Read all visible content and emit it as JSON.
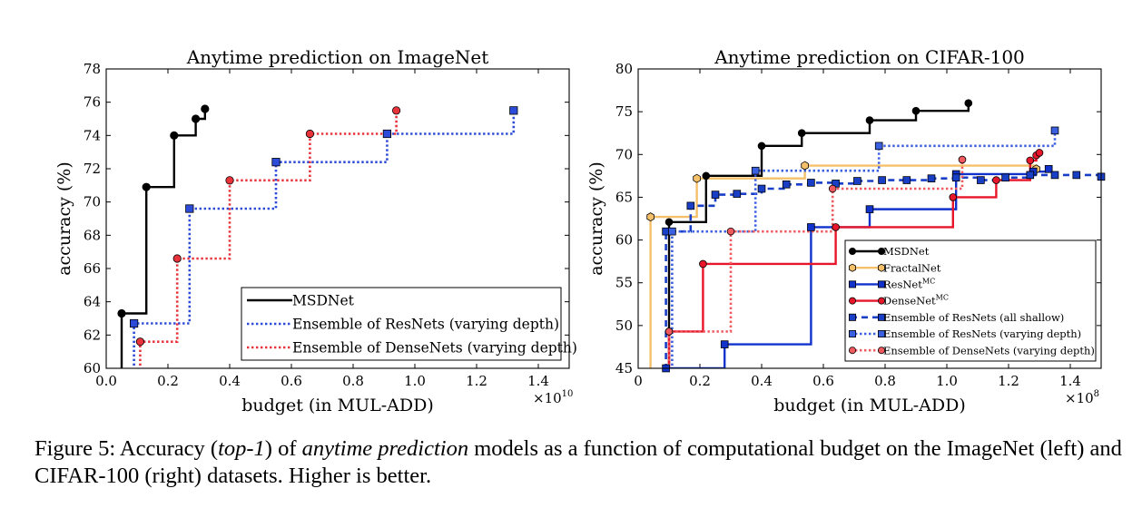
{
  "caption": {
    "prefix": "Figure 5: Accuracy (",
    "em1": "top-1",
    "mid": ") of ",
    "em2": "anytime prediction",
    "suffix": " models as a function of computational budget on the ImageNet (left) and CIFAR-100 (right) datasets. Higher is better."
  },
  "chart_data": [
    {
      "type": "line",
      "title": "Anytime prediction on ImageNet",
      "xlabel": "budget (in MUL-ADD)",
      "ylabel": "accuracy (%)",
      "x_multiplier": "×10",
      "x_multiplier_exp": "10",
      "xlim": [
        0,
        1.5
      ],
      "ylim": [
        60,
        78
      ],
      "xticks": [
        "0.0",
        "0.2",
        "0.4",
        "0.6",
        "0.8",
        "1.0",
        "1.2",
        "1.4"
      ],
      "yticks": [
        "60",
        "62",
        "64",
        "66",
        "68",
        "70",
        "72",
        "74",
        "76",
        "78"
      ],
      "legend_position": "lower-right",
      "series": [
        {
          "name": "MSDNet",
          "style": "solid",
          "color": "#000000",
          "marker": "circle",
          "x": [
            0.05,
            0.13,
            0.22,
            0.29,
            0.32
          ],
          "y": [
            63.3,
            70.9,
            74.0,
            75.0,
            75.6
          ]
        },
        {
          "name": "Ensemble of ResNets (varying depth)",
          "style": "dotted",
          "color": "#2c4bd8",
          "marker": "square",
          "x": [
            0.09,
            0.27,
            0.55,
            0.91,
            1.32
          ],
          "y": [
            62.7,
            69.6,
            72.4,
            74.1,
            75.5
          ]
        },
        {
          "name": "Ensemble of DenseNets (varying depth)",
          "style": "dotted",
          "color": "#e8333b",
          "marker": "circle",
          "x": [
            0.11,
            0.23,
            0.4,
            0.66,
            0.94
          ],
          "y": [
            61.6,
            66.6,
            71.3,
            74.1,
            75.5
          ]
        }
      ]
    },
    {
      "type": "line",
      "title": "Anytime prediction on CIFAR-100",
      "xlabel": "budget (in MUL-ADD)",
      "ylabel": "accuracy (%)",
      "x_multiplier": "×10",
      "x_multiplier_exp": "8",
      "xlim": [
        0,
        1.5
      ],
      "ylim": [
        45,
        80
      ],
      "xticks": [
        "0",
        "0.2",
        "0.4",
        "0.6",
        "0.8",
        "1.0",
        "1.2",
        "1.4"
      ],
      "yticks": [
        "45",
        "50",
        "55",
        "60",
        "65",
        "70",
        "75",
        "80"
      ],
      "legend_position": "lower-right",
      "series": [
        {
          "name": "MSDNet",
          "style": "solid",
          "color": "#000000",
          "marker": "circle",
          "x": [
            0.1,
            0.22,
            0.4,
            0.53,
            0.75,
            0.9,
            1.07
          ],
          "y": [
            62.1,
            67.5,
            71.0,
            72.5,
            74.0,
            75.1,
            76.0
          ]
        },
        {
          "name": "FractalNet",
          "style": "solid",
          "color": "#f5c06a",
          "marker": "hexagon",
          "x": [
            0.04,
            0.19,
            0.54,
            1.29
          ],
          "y": [
            62.7,
            67.2,
            68.7,
            68.3
          ]
        },
        {
          "name": "ResNet",
          "sup": "MC",
          "style": "solid",
          "color": "#1133cc",
          "marker": "square",
          "x": [
            0.09,
            0.28,
            0.56,
            0.75,
            1.03,
            1.28,
            1.33
          ],
          "y": [
            45.0,
            47.8,
            61.5,
            63.6,
            67.7,
            68.0,
            68.3
          ]
        },
        {
          "name": "DenseNet",
          "sup": "MC",
          "style": "solid",
          "color": "#e8162a",
          "marker": "circle",
          "x": [
            0.1,
            0.21,
            0.64,
            1.02,
            1.16,
            1.27,
            1.29,
            1.3
          ],
          "y": [
            49.3,
            57.2,
            61.5,
            65.0,
            67.0,
            69.3,
            69.9,
            70.2
          ]
        },
        {
          "name": "Ensemble of ResNets (all shallow)",
          "style": "dashed",
          "color": "#1a3fc7",
          "marker": "square",
          "x": [
            0.09,
            0.17,
            0.25,
            0.32,
            0.4,
            0.48,
            0.56,
            0.64,
            0.71,
            0.79,
            0.87,
            0.95,
            1.03,
            1.11,
            1.19,
            1.27,
            1.35,
            1.42,
            1.5
          ],
          "y": [
            61.0,
            64.0,
            65.3,
            65.4,
            66.0,
            66.5,
            66.7,
            66.6,
            66.9,
            67.0,
            67.0,
            67.2,
            67.3,
            67.0,
            67.3,
            67.6,
            67.6,
            67.6,
            67.4
          ]
        },
        {
          "name": "Ensemble of ResNets (varying depth)",
          "style": "dotted",
          "color": "#3a5fe0",
          "marker": "square",
          "x": [
            0.11,
            0.38,
            0.78,
            1.35
          ],
          "y": [
            61.0,
            68.1,
            71.0,
            72.8
          ]
        },
        {
          "name": "Ensemble of DenseNets (varying depth)",
          "style": "dotted",
          "color": "#f05a5f",
          "marker": "circle",
          "x": [
            0.1,
            0.3,
            0.63,
            1.05
          ],
          "y": [
            49.3,
            61.0,
            66.0,
            69.4
          ]
        }
      ]
    }
  ]
}
